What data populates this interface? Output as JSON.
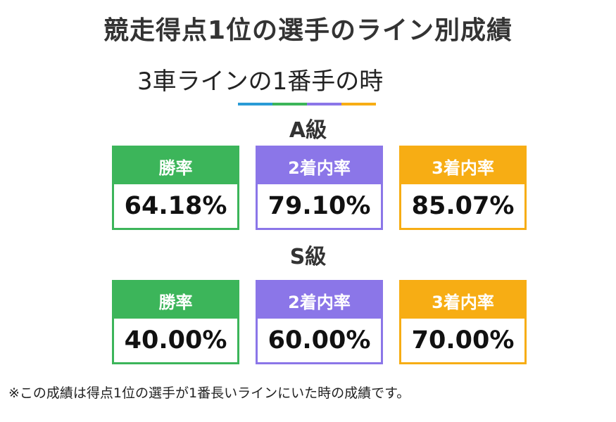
{
  "title": "競走得点1位の選手のライン別成績",
  "subtitle": "3車ラインの1番手の時",
  "colors": {
    "win": "#3cb55a",
    "second": "#8b76e8",
    "third": "#f7ad14",
    "divider": [
      "#2a9bd6",
      "#3cb55a",
      "#8b76e8",
      "#f7ad14"
    ]
  },
  "grades": [
    {
      "name": "A級",
      "stats": [
        {
          "label": "勝率",
          "value": "64.18%"
        },
        {
          "label": "2着内率",
          "value": "79.10%"
        },
        {
          "label": "3着内率",
          "value": "85.07%"
        }
      ]
    },
    {
      "name": "S級",
      "stats": [
        {
          "label": "勝率",
          "value": "40.00%"
        },
        {
          "label": "2着内率",
          "value": "60.00%"
        },
        {
          "label": "3着内率",
          "value": "70.00%"
        }
      ]
    }
  ],
  "note": "※この成績は得点1位の選手が1番長いラインにいた時の成績です。"
}
